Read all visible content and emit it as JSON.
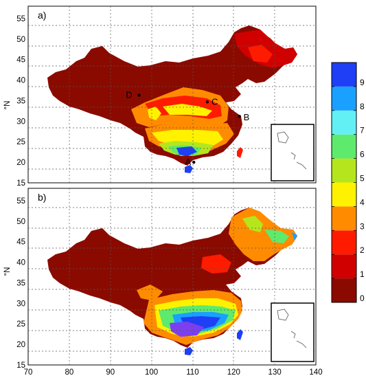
{
  "panels": [
    {
      "label": "a)",
      "y_axis_label": "°N",
      "y_ticks": [
        "55",
        "50",
        "45",
        "40",
        "35",
        "30",
        "25",
        "20",
        "15"
      ],
      "points": [
        {
          "label": "A",
          "lon": 110.3,
          "lat": 20.0
        },
        {
          "label": "B",
          "lon": 121.4,
          "lat": 31.2
        },
        {
          "label": "C",
          "lon": 113.6,
          "lat": 34.7
        },
        {
          "label": "D",
          "lon": 97.0,
          "lat": 36.3
        }
      ]
    },
    {
      "label": "b)",
      "y_axis_label": "°N",
      "y_ticks": [
        "55",
        "50",
        "45",
        "40",
        "35",
        "30",
        "25",
        "20",
        "15"
      ],
      "points": []
    }
  ],
  "x_ticks": [
    "70",
    "80",
    "90",
    "100",
    "110",
    "120",
    "130",
    "140"
  ],
  "map_extent": {
    "lon": [
      70,
      140
    ],
    "lat": [
      15,
      58
    ]
  },
  "colorbar": {
    "ticks": [
      "0",
      "1",
      "2",
      "3",
      "4",
      "5",
      "6",
      "7",
      "8",
      "9"
    ],
    "range": [
      0,
      10
    ],
    "colors": [
      "#8b0a00",
      "#d10000",
      "#ff1b00",
      "#ff8c00",
      "#fff200",
      "#b5e61d",
      "#5eea6c",
      "#62f0f5",
      "#1aa0ff",
      "#1e3ff5",
      "#7c3ff0"
    ]
  }
}
